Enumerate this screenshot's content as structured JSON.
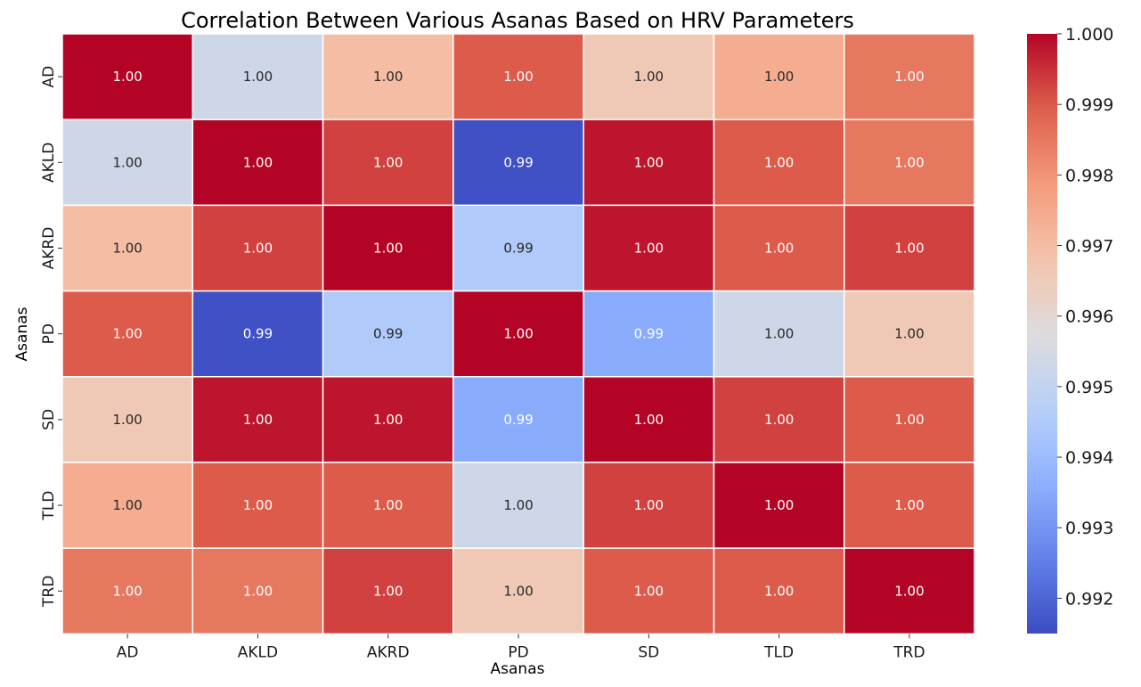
{
  "chart_data": {
    "type": "heatmap",
    "title": "Correlation Between Various Asanas Based on HRV Parameters",
    "xlabel": "Asanas",
    "ylabel": "Asanas",
    "x_categories": [
      "AD",
      "AKLD",
      "AKRD",
      "PD",
      "SD",
      "TLD",
      "TRD"
    ],
    "y_categories": [
      "AD",
      "AKLD",
      "AKRD",
      "PD",
      "SD",
      "TLD",
      "TRD"
    ],
    "values": [
      [
        1.0,
        0.9953,
        0.997,
        0.999,
        0.9966,
        0.9974,
        0.9985
      ],
      [
        0.9953,
        1.0,
        0.9993,
        0.9916,
        0.9998,
        0.999,
        0.9985
      ],
      [
        0.997,
        0.9993,
        1.0,
        0.9945,
        0.9998,
        0.999,
        0.9993
      ],
      [
        0.999,
        0.9916,
        0.9945,
        1.0,
        0.9935,
        0.9953,
        0.9966
      ],
      [
        0.9966,
        0.9998,
        0.9998,
        0.9935,
        1.0,
        0.9993,
        0.999
      ],
      [
        0.9974,
        0.999,
        0.999,
        0.9953,
        0.9993,
        1.0,
        0.999
      ],
      [
        0.9985,
        0.9985,
        0.9993,
        0.9966,
        0.999,
        0.999,
        1.0
      ]
    ],
    "annotations": [
      [
        "1.00",
        "1.00",
        "1.00",
        "1.00",
        "1.00",
        "1.00",
        "1.00"
      ],
      [
        "1.00",
        "1.00",
        "1.00",
        "0.99",
        "1.00",
        "1.00",
        "1.00"
      ],
      [
        "1.00",
        "1.00",
        "1.00",
        "0.99",
        "1.00",
        "1.00",
        "1.00"
      ],
      [
        "1.00",
        "0.99",
        "0.99",
        "1.00",
        "0.99",
        "1.00",
        "1.00"
      ],
      [
        "1.00",
        "1.00",
        "1.00",
        "0.99",
        "1.00",
        "1.00",
        "1.00"
      ],
      [
        "1.00",
        "1.00",
        "1.00",
        "1.00",
        "1.00",
        "1.00",
        "1.00"
      ],
      [
        "1.00",
        "1.00",
        "1.00",
        "1.00",
        "1.00",
        "1.00",
        "1.00"
      ]
    ],
    "colormap": "coolwarm",
    "vmin": 0.9915,
    "vmax": 1.0,
    "colorbar_ticks": [
      0.992,
      0.993,
      0.994,
      0.995,
      0.996,
      0.997,
      0.998,
      0.999,
      1.0
    ],
    "colorbar_tick_labels": [
      "0.992",
      "0.993",
      "0.994",
      "0.995",
      "0.996",
      "0.997",
      "0.998",
      "0.999",
      "1.000"
    ]
  }
}
